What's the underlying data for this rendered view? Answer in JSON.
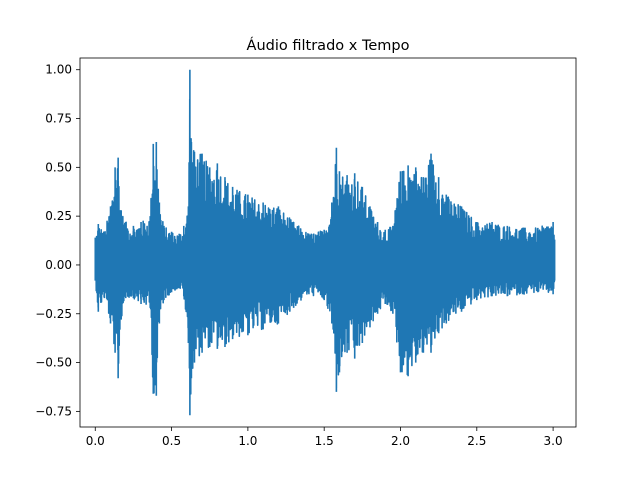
{
  "chart_data": {
    "type": "line",
    "title": "Áudio filtrado x Tempo",
    "xlabel": "",
    "ylabel": "",
    "xlim": [
      -0.1,
      3.15
    ],
    "ylim": [
      -0.83,
      1.06
    ],
    "x_ticks": [
      0.0,
      0.5,
      1.0,
      1.5,
      2.0,
      2.5,
      3.0
    ],
    "x_tick_labels": [
      "0.0",
      "0.5",
      "1.0",
      "1.5",
      "2.0",
      "2.5",
      "3.0"
    ],
    "y_ticks": [
      -0.75,
      -0.5,
      -0.25,
      0.0,
      0.25,
      0.5,
      0.75,
      1.0
    ],
    "y_tick_labels": [
      "−0.75",
      "−0.50",
      "−0.25",
      "0.00",
      "0.25",
      "0.50",
      "0.75",
      "1.00"
    ],
    "grid": false,
    "legend": "none",
    "series": [
      {
        "color": "#1f77b4",
        "envelope": {
          "time": [
            0.0,
            0.02,
            0.06,
            0.1,
            0.13,
            0.15,
            0.17,
            0.2,
            0.25,
            0.3,
            0.36,
            0.38,
            0.4,
            0.42,
            0.45,
            0.5,
            0.55,
            0.58,
            0.61,
            0.62,
            0.63,
            0.65,
            0.7,
            0.75,
            0.8,
            0.85,
            0.9,
            1.0,
            1.1,
            1.2,
            1.3,
            1.4,
            1.5,
            1.55,
            1.58,
            1.6,
            1.65,
            1.7,
            1.75,
            1.8,
            1.85,
            1.9,
            1.95,
            2.0,
            2.05,
            2.1,
            2.15,
            2.2,
            2.25,
            2.3,
            2.4,
            2.5,
            2.6,
            2.7,
            2.8,
            2.9,
            3.0,
            3.01
          ],
          "max": [
            0.14,
            0.21,
            0.17,
            0.3,
            0.5,
            0.55,
            0.28,
            0.22,
            0.2,
            0.22,
            0.25,
            0.62,
            0.63,
            0.32,
            0.2,
            0.17,
            0.16,
            0.2,
            0.3,
            1.0,
            0.63,
            0.58,
            0.57,
            0.5,
            0.52,
            0.45,
            0.4,
            0.36,
            0.32,
            0.3,
            0.22,
            0.16,
            0.18,
            0.32,
            0.6,
            0.48,
            0.46,
            0.47,
            0.4,
            0.3,
            0.22,
            0.18,
            0.2,
            0.48,
            0.51,
            0.5,
            0.45,
            0.57,
            0.45,
            0.36,
            0.3,
            0.22,
            0.22,
            0.2,
            0.19,
            0.19,
            0.22,
            0.13
          ],
          "min": [
            -0.08,
            -0.24,
            -0.17,
            -0.3,
            -0.45,
            -0.58,
            -0.28,
            -0.17,
            -0.17,
            -0.2,
            -0.22,
            -0.66,
            -0.67,
            -0.3,
            -0.18,
            -0.14,
            -0.12,
            -0.16,
            -0.4,
            -0.77,
            -0.58,
            -0.5,
            -0.45,
            -0.42,
            -0.43,
            -0.42,
            -0.38,
            -0.36,
            -0.33,
            -0.3,
            -0.22,
            -0.15,
            -0.18,
            -0.3,
            -0.65,
            -0.55,
            -0.45,
            -0.48,
            -0.4,
            -0.32,
            -0.25,
            -0.2,
            -0.25,
            -0.55,
            -0.57,
            -0.5,
            -0.45,
            -0.45,
            -0.35,
            -0.3,
            -0.24,
            -0.18,
            -0.16,
            -0.16,
            -0.15,
            -0.14,
            -0.15,
            -0.08
          ]
        }
      }
    ]
  }
}
